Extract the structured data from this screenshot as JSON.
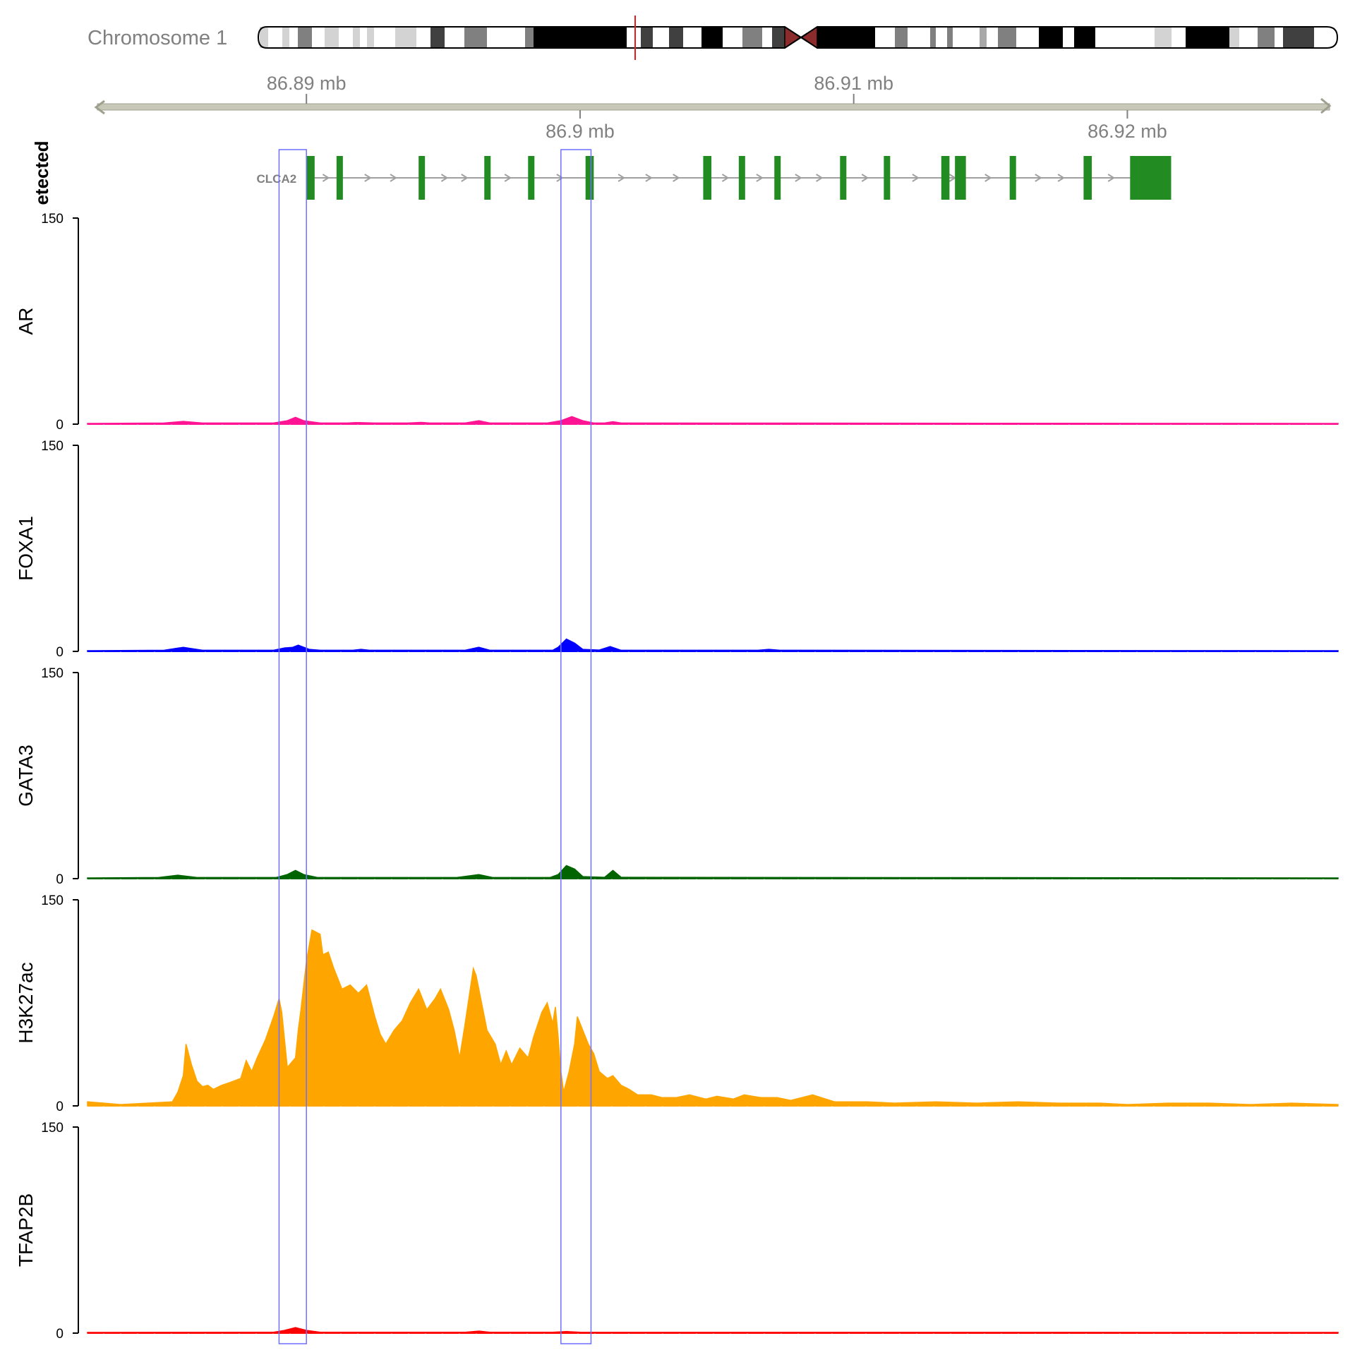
{
  "chromosome": {
    "label": "Chromosome 1",
    "colors": {
      "outline": "#000000",
      "centromere": "#8b2b2b",
      "marker": "#e41a1c",
      "bands": [
        "#ffffff",
        "#d3d3d3",
        "#a9a9a9",
        "#808080",
        "#404040",
        "#000000"
      ]
    }
  },
  "axis": {
    "ticks": [
      {
        "value": 86.89,
        "label": "86.89 mb",
        "position": "top"
      },
      {
        "value": 86.9,
        "label": "86.9 mb",
        "position": "bottom"
      },
      {
        "value": 86.91,
        "label": "86.91 mb",
        "position": "top"
      },
      {
        "value": 86.92,
        "label": "86.92 mb",
        "position": "bottom"
      }
    ],
    "color": "#808080",
    "bar_color": "#c8c8b8"
  },
  "gene_track": {
    "track_label": "etected",
    "gene_name": "CLCA2",
    "strand": "+",
    "color": "#228b22",
    "exons_mb": [
      [
        86.89,
        86.8903
      ],
      [
        86.8911,
        86.8913
      ],
      [
        86.8941,
        86.8943
      ],
      [
        86.8965,
        86.8966
      ],
      [
        86.8981,
        86.8983
      ],
      [
        86.9002,
        86.9005
      ],
      [
        86.9045,
        86.9048
      ],
      [
        86.9058,
        86.906
      ],
      [
        86.9071,
        86.9072
      ],
      [
        86.9095,
        86.9097
      ],
      [
        86.9111,
        86.9113
      ],
      [
        86.9132,
        86.9135
      ],
      [
        86.9137,
        86.9141
      ],
      [
        86.9157,
        86.9159
      ],
      [
        86.9184,
        86.9187
      ],
      [
        86.9201,
        86.9216
      ]
    ]
  },
  "highlights": {
    "color": "#6f6fff",
    "regions_mb": [
      [
        86.889,
        86.89
      ],
      [
        86.8993,
        86.9004
      ]
    ]
  },
  "chart_data": {
    "type": "area",
    "x_range_mb": [
      86.882,
      86.9277
    ],
    "ylim": [
      0,
      150
    ],
    "yticks": [
      "0",
      "150"
    ],
    "grid": false,
    "legend": "none",
    "tracks": [
      {
        "name": "AR",
        "color": "#ff1493",
        "points": [
          [
            86.882,
            0.5
          ],
          [
            86.8848,
            0.8
          ],
          [
            86.8855,
            2
          ],
          [
            86.8862,
            0.8
          ],
          [
            86.8888,
            0.8
          ],
          [
            86.8893,
            2.5
          ],
          [
            86.8896,
            5
          ],
          [
            86.8899,
            2.5
          ],
          [
            86.8905,
            0.8
          ],
          [
            86.8915,
            0.8
          ],
          [
            86.8918,
            1.2
          ],
          [
            86.8925,
            0.8
          ],
          [
            86.8937,
            0.8
          ],
          [
            86.8942,
            1.3
          ],
          [
            86.8945,
            0.8
          ],
          [
            86.8958,
            0.8
          ],
          [
            86.8963,
            2.5
          ],
          [
            86.8967,
            0.8
          ],
          [
            86.8988,
            0.8
          ],
          [
            86.8993,
            2.5
          ],
          [
            86.8997,
            5.5
          ],
          [
            86.9001,
            2.5
          ],
          [
            86.9005,
            0.8
          ],
          [
            86.9009,
            0.8
          ],
          [
            86.9012,
            1.8
          ],
          [
            86.9015,
            0.8
          ],
          [
            86.9277,
            0.5
          ]
        ]
      },
      {
        "name": "FOXA1",
        "color": "#0000ff",
        "points": [
          [
            86.882,
            0.5
          ],
          [
            86.8848,
            0.8
          ],
          [
            86.8855,
            3
          ],
          [
            86.8862,
            0.8
          ],
          [
            86.8888,
            0.8
          ],
          [
            86.8892,
            2.5
          ],
          [
            86.8895,
            3
          ],
          [
            86.8897,
            4.5
          ],
          [
            86.8901,
            1.5
          ],
          [
            86.8905,
            0.8
          ],
          [
            86.8917,
            0.8
          ],
          [
            86.892,
            1.5
          ],
          [
            86.8923,
            0.8
          ],
          [
            86.8958,
            0.8
          ],
          [
            86.8963,
            3
          ],
          [
            86.8967,
            0.8
          ],
          [
            86.899,
            0.8
          ],
          [
            86.8992,
            3
          ],
          [
            86.8995,
            9
          ],
          [
            86.8998,
            6
          ],
          [
            86.9001,
            1.5
          ],
          [
            86.9007,
            1
          ],
          [
            86.9011,
            3.5
          ],
          [
            86.9015,
            0.8
          ],
          [
            86.9065,
            0.8
          ],
          [
            86.9069,
            1.5
          ],
          [
            86.9073,
            0.8
          ],
          [
            86.9277,
            0.5
          ]
        ]
      },
      {
        "name": "GATA3",
        "color": "#006400",
        "points": [
          [
            86.882,
            0.5
          ],
          [
            86.8846,
            0.8
          ],
          [
            86.8853,
            2.5
          ],
          [
            86.886,
            0.8
          ],
          [
            86.8889,
            0.8
          ],
          [
            86.8893,
            3
          ],
          [
            86.8896,
            6
          ],
          [
            86.8899,
            3
          ],
          [
            86.8904,
            0.8
          ],
          [
            86.8955,
            0.8
          ],
          [
            86.8963,
            3
          ],
          [
            86.8968,
            0.8
          ],
          [
            86.8989,
            0.8
          ],
          [
            86.8992,
            3
          ],
          [
            86.8995,
            9.5
          ],
          [
            86.8998,
            7
          ],
          [
            86.9001,
            1.5
          ],
          [
            86.9009,
            1
          ],
          [
            86.9012,
            6
          ],
          [
            86.9015,
            1
          ],
          [
            86.9277,
            0.5
          ]
        ]
      },
      {
        "name": "H3K27ac",
        "color": "#ffa500",
        "points": [
          [
            86.882,
            3
          ],
          [
            86.8826,
            2
          ],
          [
            86.8832,
            1
          ],
          [
            86.8842,
            2
          ],
          [
            86.8851,
            3
          ],
          [
            86.8853,
            10
          ],
          [
            86.8855,
            22
          ],
          [
            86.8856,
            45
          ],
          [
            86.8858,
            30
          ],
          [
            86.886,
            18
          ],
          [
            86.8862,
            14
          ],
          [
            86.8864,
            15
          ],
          [
            86.8866,
            12
          ],
          [
            86.8869,
            15
          ],
          [
            86.8872,
            17
          ],
          [
            86.8876,
            20
          ],
          [
            86.8878,
            33
          ],
          [
            86.888,
            25
          ],
          [
            86.8882,
            35
          ],
          [
            86.8885,
            48
          ],
          [
            86.8888,
            65
          ],
          [
            86.889,
            78
          ],
          [
            86.8891,
            68
          ],
          [
            86.8892,
            48
          ],
          [
            86.8893,
            28
          ],
          [
            86.8896,
            35
          ],
          [
            86.8897,
            55
          ],
          [
            86.8898,
            70
          ],
          [
            86.89,
            105
          ],
          [
            86.8902,
            128
          ],
          [
            86.8905,
            125
          ],
          [
            86.8906,
            110
          ],
          [
            86.8908,
            112
          ],
          [
            86.891,
            100
          ],
          [
            86.8913,
            85
          ],
          [
            86.8916,
            88
          ],
          [
            86.8919,
            82
          ],
          [
            86.8922,
            88
          ],
          [
            86.8925,
            65
          ],
          [
            86.8927,
            52
          ],
          [
            86.8929,
            45
          ],
          [
            86.8932,
            55
          ],
          [
            86.8935,
            62
          ],
          [
            86.8938,
            75
          ],
          [
            86.8941,
            85
          ],
          [
            86.8944,
            70
          ],
          [
            86.8947,
            78
          ],
          [
            86.8949,
            85
          ],
          [
            86.8952,
            70
          ],
          [
            86.8954,
            55
          ],
          [
            86.8956,
            35
          ],
          [
            86.8958,
            60
          ],
          [
            86.8961,
            100
          ],
          [
            86.8962,
            95
          ],
          [
            86.8964,
            75
          ],
          [
            86.8966,
            55
          ],
          [
            86.8969,
            45
          ],
          [
            86.8971,
            30
          ],
          [
            86.8973,
            40
          ],
          [
            86.8975,
            30
          ],
          [
            86.8978,
            42
          ],
          [
            86.8981,
            35
          ],
          [
            86.8983,
            50
          ],
          [
            86.8986,
            68
          ],
          [
            86.8988,
            75
          ],
          [
            86.899,
            60
          ],
          [
            86.8991,
            72
          ],
          [
            86.8992,
            50
          ],
          [
            86.8993,
            25
          ],
          [
            86.8994,
            10
          ],
          [
            86.8996,
            25
          ],
          [
            86.8998,
            45
          ],
          [
            86.8999,
            65
          ],
          [
            86.9001,
            55
          ],
          [
            86.9003,
            45
          ],
          [
            86.9005,
            38
          ],
          [
            86.9007,
            25
          ],
          [
            86.901,
            20
          ],
          [
            86.9012,
            22
          ],
          [
            86.9015,
            15
          ],
          [
            86.9018,
            12
          ],
          [
            86.9021,
            8
          ],
          [
            86.9026,
            8
          ],
          [
            86.903,
            6
          ],
          [
            86.9035,
            6
          ],
          [
            86.904,
            8
          ],
          [
            86.9046,
            5
          ],
          [
            86.905,
            7
          ],
          [
            86.9056,
            5
          ],
          [
            86.906,
            8
          ],
          [
            86.9066,
            6
          ],
          [
            86.9072,
            6
          ],
          [
            86.9077,
            4
          ],
          [
            86.9085,
            8
          ],
          [
            86.9093,
            3
          ],
          [
            86.9105,
            3
          ],
          [
            86.9115,
            2
          ],
          [
            86.913,
            3
          ],
          [
            86.9145,
            2
          ],
          [
            86.916,
            3
          ],
          [
            86.9175,
            2
          ],
          [
            86.919,
            2
          ],
          [
            86.92,
            1
          ],
          [
            86.9215,
            2
          ],
          [
            86.923,
            2
          ],
          [
            86.9245,
            1
          ],
          [
            86.926,
            2
          ],
          [
            86.9277,
            1
          ]
        ]
      },
      {
        "name": "TFAP2B",
        "color": "#ff0000",
        "points": [
          [
            86.882,
            0.5
          ],
          [
            86.8888,
            0.6
          ],
          [
            86.8892,
            2
          ],
          [
            86.8896,
            4
          ],
          [
            86.89,
            2
          ],
          [
            86.8905,
            0.6
          ],
          [
            86.8958,
            0.6
          ],
          [
            86.8963,
            1.5
          ],
          [
            86.8967,
            0.6
          ],
          [
            86.899,
            0.6
          ],
          [
            86.8995,
            1.2
          ],
          [
            86.9,
            0.6
          ],
          [
            86.9277,
            0.5
          ]
        ]
      }
    ]
  }
}
